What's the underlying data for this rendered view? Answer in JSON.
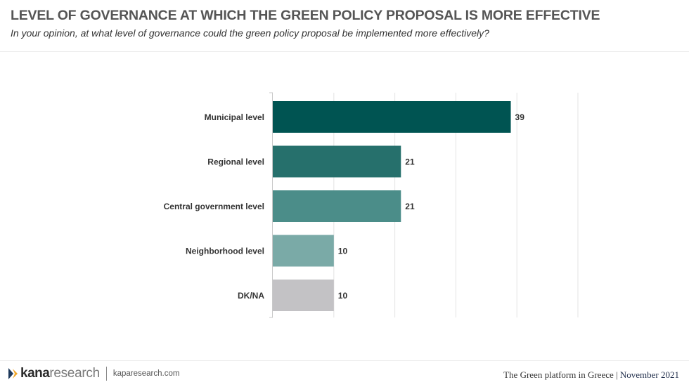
{
  "header": {
    "title": "LEVEL OF GOVERNANCE AT WHICH THE GREEN POLICY PROPOSAL IS MORE EFFECTIVE",
    "subtitle": "In your opinion, at what level of governance could the green policy proposal be implemented more effectively?"
  },
  "chart_data": {
    "type": "bar",
    "orientation": "horizontal",
    "title": "LEVEL OF GOVERNANCE AT WHICH THE GREEN POLICY PROPOSAL IS MORE EFFECTIVE",
    "xlabel": "",
    "ylabel": "",
    "categories": [
      "Municipal level",
      "Regional level",
      "Central government level",
      "Neighborhood level",
      "DK/NA"
    ],
    "values": [
      39,
      21,
      21,
      10,
      10
    ],
    "data_labels": [
      "39",
      "21",
      "21",
      "10",
      "10"
    ],
    "colors": [
      "#005452",
      "#26706c",
      "#4b8d89",
      "#7aaaa7",
      "#c3c2c5"
    ],
    "xlim": [
      0,
      50
    ],
    "gridlines": [
      0,
      10,
      20,
      30,
      40,
      50
    ],
    "grid": true,
    "legend": "none"
  },
  "footer": {
    "brand_bold": "kana",
    "brand_light": "research",
    "site": "kaparesearch.com",
    "report_name": "The Green platform in Greece",
    "separator": "|",
    "date": "November 2021"
  }
}
